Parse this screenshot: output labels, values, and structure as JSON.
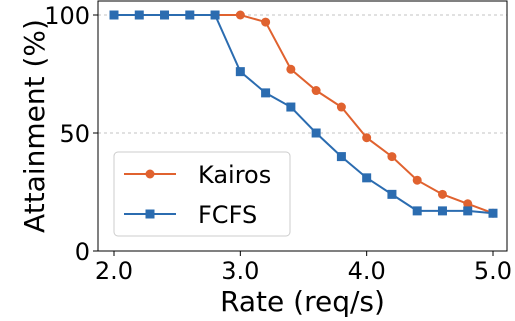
{
  "chart_data": {
    "type": "line",
    "title": "",
    "xlabel": "Rate (req/s)",
    "ylabel": "Attainment (%)",
    "xlim": [
      2.0,
      5.0
    ],
    "ylim": [
      0,
      100
    ],
    "xticks": [
      "2.0",
      "3.0",
      "4.0",
      "5.0"
    ],
    "yticks": [
      "0",
      "50",
      "100"
    ],
    "x": [
      2.0,
      2.2,
      2.4,
      2.6,
      2.8,
      3.0,
      3.2,
      3.4,
      3.6,
      3.8,
      4.0,
      4.2,
      4.4,
      4.6,
      4.8,
      5.0
    ],
    "series": [
      {
        "name": "Kairos",
        "color": "#e0622f",
        "marker": "circle",
        "values": [
          100,
          100,
          100,
          100,
          100,
          100,
          97,
          77,
          68,
          61,
          48,
          40,
          30,
          24,
          20,
          16
        ]
      },
      {
        "name": "FCFS",
        "color": "#2b6cb0",
        "marker": "square",
        "values": [
          100,
          100,
          100,
          100,
          100,
          76,
          67,
          61,
          50,
          40,
          31,
          24,
          17,
          17,
          17,
          16
        ]
      }
    ],
    "grid": "horizontal-dashed",
    "legend_position": "lower-left"
  }
}
